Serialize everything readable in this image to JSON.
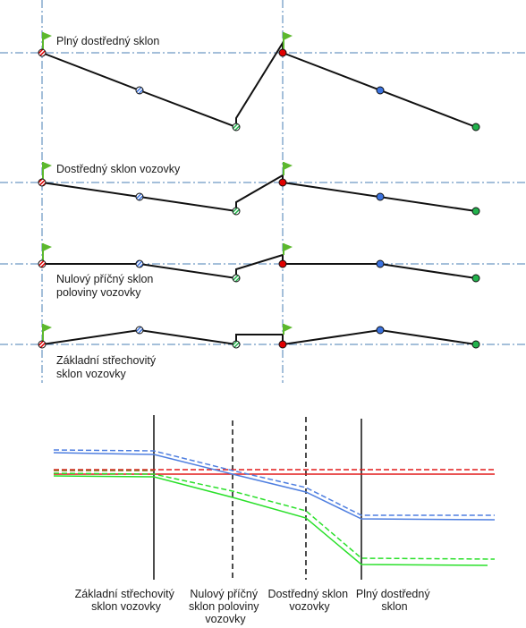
{
  "sections": [
    {
      "label_lines": [
        "Plný dostředný sklon"
      ]
    },
    {
      "label_lines": [
        "Dostředný sklon vozovky"
      ]
    },
    {
      "label_lines": [
        "Nulový příčný sklon",
        "poloviny vozovky"
      ]
    },
    {
      "label_lines": [
        "Základní střechovitý",
        "sklon vozovky"
      ]
    }
  ],
  "stages": [
    {
      "label_lines": [
        "Základní střechovitý",
        "sklon vozovky"
      ]
    },
    {
      "label_lines": [
        "Nulový příčný",
        "sklon poloviny",
        "vozovky"
      ]
    },
    {
      "label_lines": [
        "Dostředný sklon",
        "vozovky"
      ]
    },
    {
      "label_lines": [
        "Plný dostředný",
        "sklon"
      ]
    }
  ],
  "colors": {
    "flag": "#5cb82e",
    "red": "#e00000",
    "blue": "#3b73e0",
    "green": "#22b24c",
    "axis": "#4a7fb5",
    "profile_red": "#e21b1b",
    "profile_blue": "#4f7fe0",
    "profile_green": "#2ae02a",
    "profile_olive": "#8a6a1e"
  },
  "icons": [
    "flag-icon",
    "hatched-point-icon",
    "solid-point-icon"
  ]
}
